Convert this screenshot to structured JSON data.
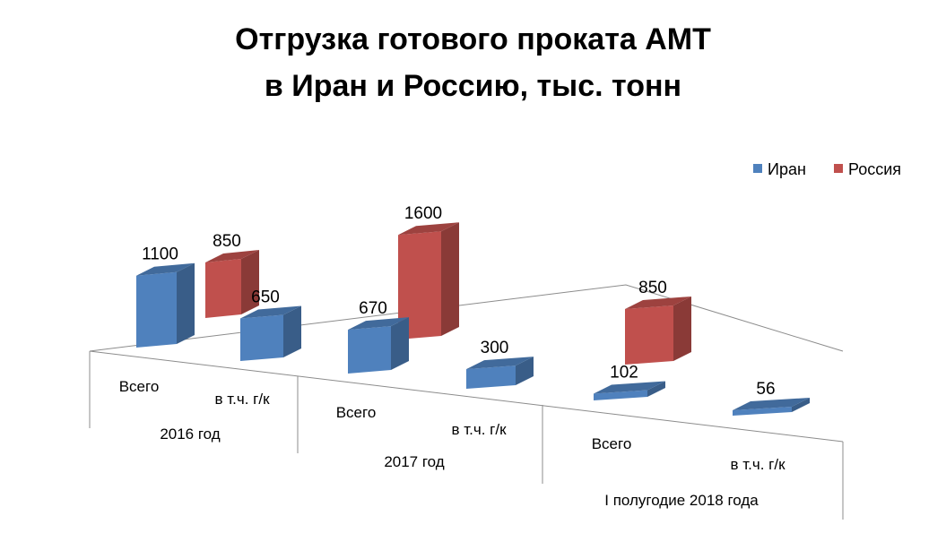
{
  "chart_data": {
    "type": "bar",
    "title_line1": "Отгрузка готового проката АМТ",
    "title_line2": "в Иран и Россию, тыс. тонн",
    "legend_position": "top-right",
    "series": [
      {
        "name": "Иран",
        "color": "#4f81bd"
      },
      {
        "name": "Россия",
        "color": "#c0504d"
      }
    ],
    "groups": [
      {
        "label": "2016 год",
        "bars": [
          {
            "category": "Всего",
            "series": "Иран",
            "value": 1100,
            "label": "1100"
          },
          {
            "category": "Всего",
            "series": "Россия",
            "value": 850,
            "label": "850"
          },
          {
            "category": "в т.ч. г/к",
            "series": "Иран",
            "value": 650,
            "label": "650"
          }
        ],
        "category_labels": [
          "Всего",
          "в т.ч. г/к"
        ]
      },
      {
        "label": "2017 год",
        "bars": [
          {
            "category": "Всего",
            "series": "Иран",
            "value": 670,
            "label": "670"
          },
          {
            "category": "Всего",
            "series": "Россия",
            "value": 1600,
            "label": "1600"
          },
          {
            "category": "в т.ч. г/к",
            "series": "Иран",
            "value": 300,
            "label": "300"
          }
        ],
        "category_labels": [
          "Всего",
          "в т.ч. г/к"
        ]
      },
      {
        "label": "I полугодие 2018 года",
        "bars": [
          {
            "category": "Всего",
            "series": "Иран",
            "value": 102,
            "label": "102"
          },
          {
            "category": "Всего",
            "series": "Россия",
            "value": 850,
            "label": "850"
          },
          {
            "category": "в т.ч. г/к",
            "series": "Иран",
            "value": 56,
            "label": "56"
          }
        ],
        "category_labels": [
          "Всего",
          "в т.ч. г/к"
        ]
      }
    ]
  }
}
